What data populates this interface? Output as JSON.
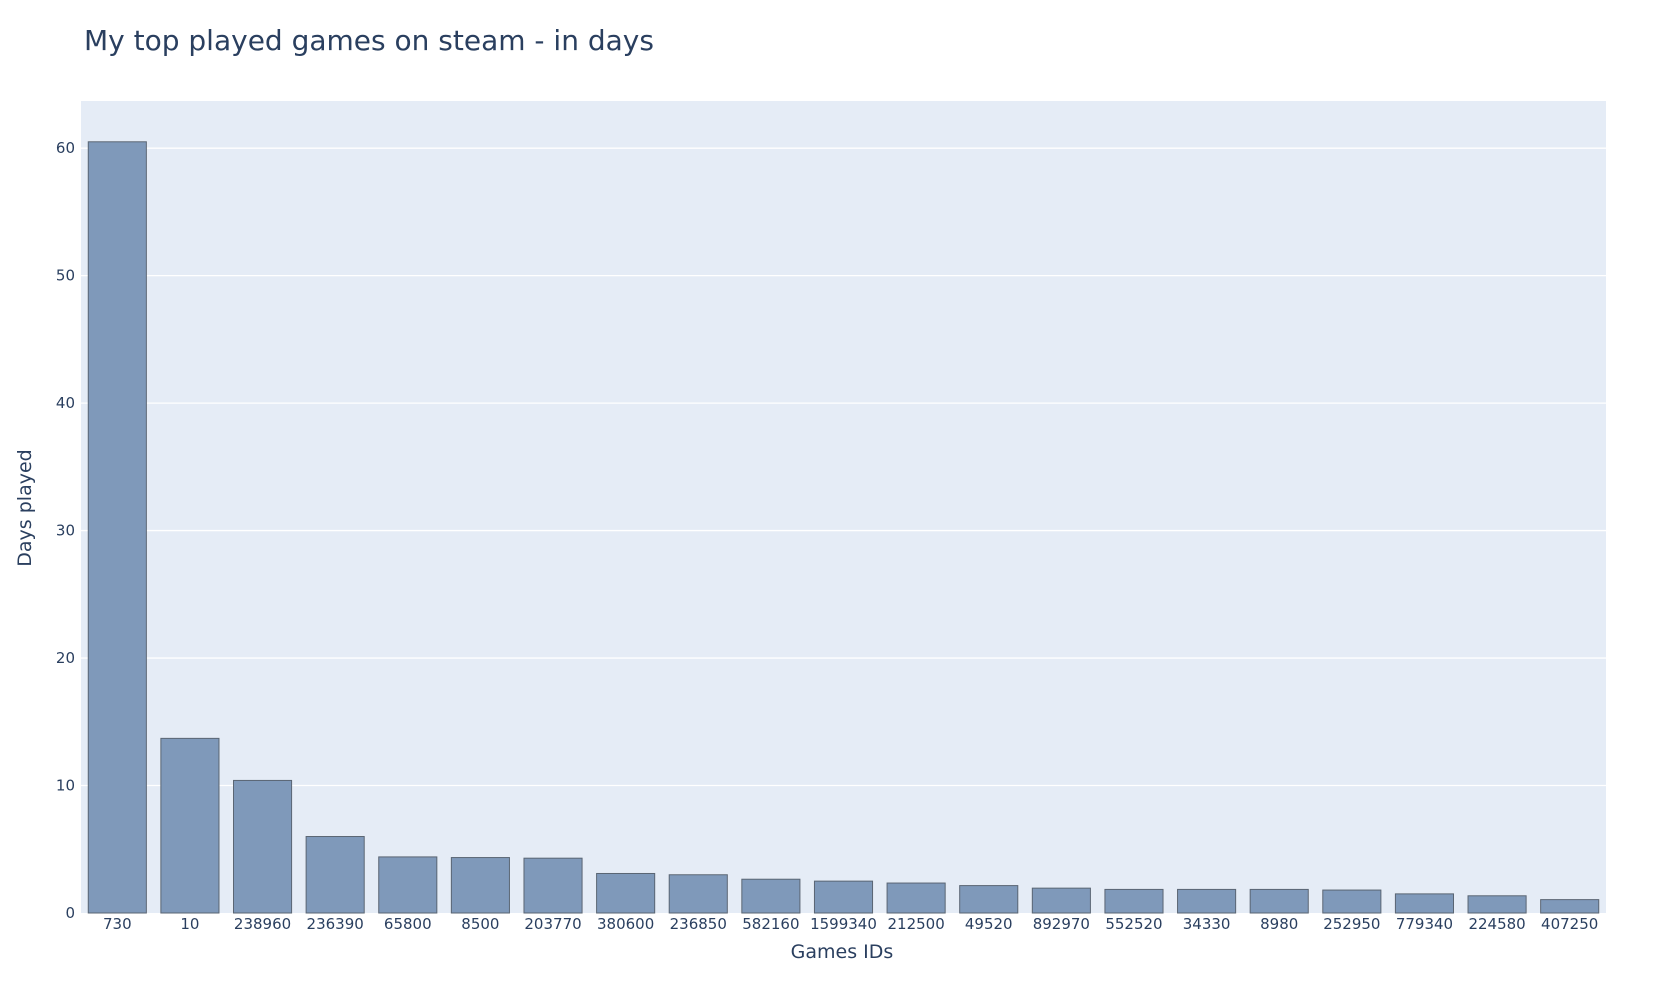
{
  "chart_data": {
    "type": "bar",
    "title": "My top played games on steam - in days",
    "xlabel": "Games IDs",
    "ylabel": "Days played",
    "categories": [
      "730",
      "10",
      "238960",
      "236390",
      "65800",
      "8500",
      "203770",
      "380600",
      "236850",
      "582160",
      "1599340",
      "212500",
      "49520",
      "892970",
      "552520",
      "34330",
      "8980",
      "252950",
      "779340",
      "224580",
      "407250"
    ],
    "values": [
      60.5,
      13.7,
      10.4,
      6.0,
      4.4,
      4.35,
      4.3,
      3.1,
      3.0,
      2.65,
      2.5,
      2.35,
      2.15,
      1.95,
      1.85,
      1.85,
      1.85,
      1.8,
      1.5,
      1.35,
      1.05
    ],
    "ylim": [
      0,
      63.7
    ],
    "yticks": [
      0,
      10,
      20,
      30,
      40,
      50,
      60
    ],
    "grid": true,
    "legend": "none",
    "colors": {
      "bar": "#7f99ba",
      "plot_background": "#e5ecf6",
      "grid": "#ffffff",
      "text": "#2a3f5f"
    }
  }
}
